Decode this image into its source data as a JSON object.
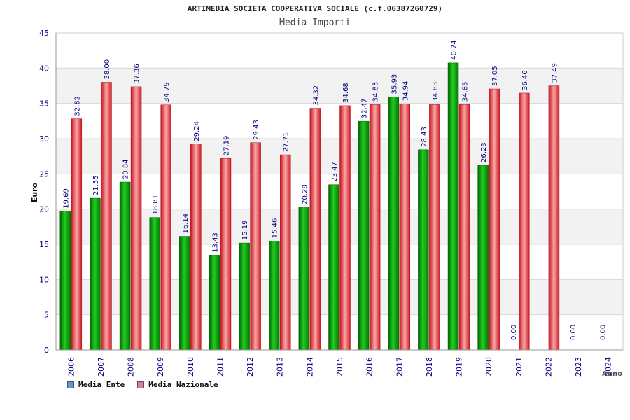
{
  "chart_data": {
    "type": "bar",
    "title": "ARTIMEDIA SOCIETA COOPERATIVA SOCIALE (c.f.06387260729)",
    "subtitle": "Media Importi",
    "ylabel": "Euro",
    "xlabel": "Anno",
    "ylim": [
      0,
      45
    ],
    "yticks": [
      0,
      5,
      10,
      15,
      20,
      25,
      30,
      35,
      40,
      45
    ],
    "categories": [
      "2006",
      "2007",
      "2008",
      "2009",
      "2010",
      "2011",
      "2012",
      "2013",
      "2014",
      "2015",
      "2016",
      "2017",
      "2018",
      "2019",
      "2020",
      "2021",
      "2022",
      "2023",
      "2024"
    ],
    "series": [
      {
        "name": "Media Ente",
        "color": "#00a000",
        "values": [
          19.69,
          21.55,
          23.84,
          18.81,
          16.14,
          13.43,
          15.19,
          15.46,
          20.28,
          23.47,
          32.47,
          35.93,
          28.43,
          40.74,
          26.23,
          0.0,
          null,
          0.0,
          0.0
        ],
        "labels": [
          "19.69",
          "21.55",
          "23.84",
          "18.81",
          "16.14",
          "13.43",
          "15.19",
          "15.46",
          "20.28",
          "23.47",
          "32.47",
          "35.93",
          "28.43",
          "40.74",
          "26.23",
          "0.00",
          "",
          "0.00",
          "0.00"
        ]
      },
      {
        "name": "Media Nazionale",
        "color": "#e8202a",
        "values": [
          32.82,
          38.0,
          37.36,
          34.79,
          29.24,
          27.19,
          29.43,
          27.71,
          34.32,
          34.68,
          34.83,
          34.94,
          34.83,
          34.85,
          37.05,
          36.46,
          37.49,
          null,
          null
        ],
        "labels": [
          "32.82",
          "38.00",
          "37.36",
          "34.79",
          "29.24",
          "27.19",
          "29.43",
          "27.71",
          "34.32",
          "34.68",
          "34.83",
          "34.94",
          "34.83",
          "34.85",
          "37.05",
          "36.46",
          "37.49",
          "",
          ""
        ]
      }
    ],
    "legend": [
      {
        "label": "Media Ente",
        "color": "#5b9bd5"
      },
      {
        "label": "Media Nazionale",
        "color": "#e377a9"
      }
    ],
    "grid": true,
    "legend_position": "bottom-left"
  }
}
